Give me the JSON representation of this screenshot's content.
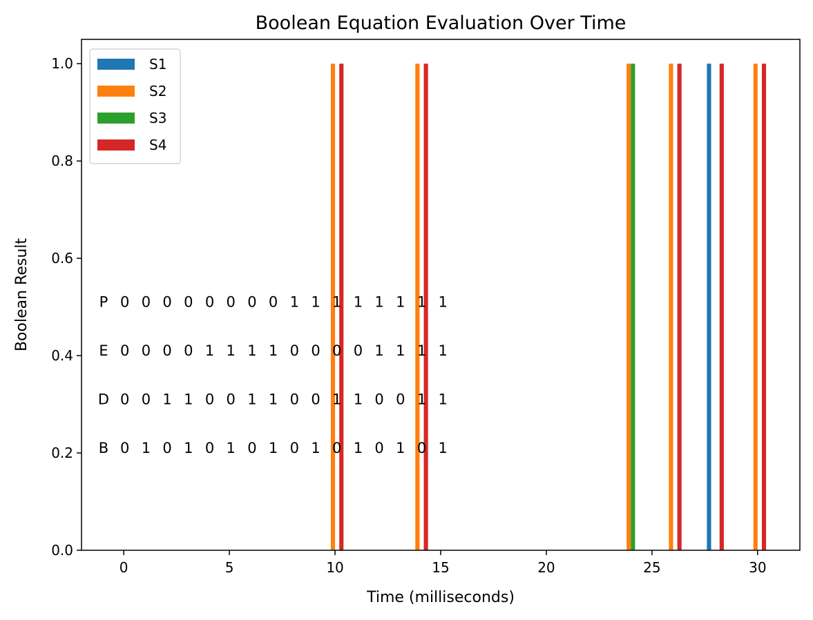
{
  "chart_data": {
    "type": "bar",
    "title": "Boolean Equation Evaluation Over Time",
    "xlabel": "Time (milliseconds)",
    "ylabel": "Boolean Result",
    "xlim": [
      -2,
      32
    ],
    "ylim": [
      0,
      1.05
    ],
    "xticks": [
      0,
      5,
      10,
      15,
      20,
      25,
      30
    ],
    "yticks": [
      0.0,
      0.2,
      0.4,
      0.6,
      0.8,
      1.0
    ],
    "xtick_labels": [
      "0",
      "5",
      "10",
      "15",
      "20",
      "25",
      "30"
    ],
    "ytick_labels": [
      "0.0",
      "0.2",
      "0.4",
      "0.6",
      "0.8",
      "1.0"
    ],
    "grid": false,
    "legend_position": "top-left",
    "x": [
      0,
      2,
      4,
      6,
      8,
      10,
      12,
      14,
      16,
      18,
      20,
      22,
      24,
      26,
      28,
      30
    ],
    "series": [
      {
        "name": "S1",
        "color": "#1f77b4",
        "values": [
          0,
          0,
          0,
          0,
          0,
          0,
          0,
          0,
          0,
          0,
          0,
          0,
          0,
          0,
          1,
          0
        ]
      },
      {
        "name": "S2",
        "color": "#ff7f0e",
        "values": [
          0,
          0,
          0,
          0,
          0,
          1,
          0,
          1,
          0,
          0,
          0,
          0,
          1,
          1,
          0,
          1
        ]
      },
      {
        "name": "S3",
        "color": "#2ca02c",
        "values": [
          0,
          0,
          0,
          0,
          0,
          0,
          0,
          0,
          0,
          0,
          0,
          0,
          1,
          0,
          0,
          0
        ]
      },
      {
        "name": "S4",
        "color": "#d62728",
        "values": [
          0,
          0,
          0,
          0,
          0,
          1,
          0,
          1,
          0,
          0,
          0,
          0,
          0,
          1,
          1,
          1
        ]
      }
    ],
    "annotations": [
      {
        "label": "P",
        "bits": [
          "0",
          "0",
          "0",
          "0",
          "0",
          "0",
          "0",
          "0",
          "1",
          "1",
          "1",
          "1",
          "1",
          "1",
          "1",
          "1"
        ],
        "y": 0.51
      },
      {
        "label": "E",
        "bits": [
          "0",
          "0",
          "0",
          "0",
          "1",
          "1",
          "1",
          "1",
          "0",
          "0",
          "0",
          "0",
          "1",
          "1",
          "1",
          "1"
        ],
        "y": 0.41
      },
      {
        "label": "D",
        "bits": [
          "0",
          "0",
          "1",
          "1",
          "0",
          "0",
          "1",
          "1",
          "0",
          "0",
          "1",
          "1",
          "0",
          "0",
          "1",
          "1"
        ],
        "y": 0.31
      },
      {
        "label": "B",
        "bits": [
          "0",
          "1",
          "0",
          "1",
          "0",
          "1",
          "0",
          "1",
          "0",
          "1",
          "0",
          "1",
          "0",
          "1",
          "0",
          "1"
        ],
        "y": 0.21
      }
    ]
  }
}
